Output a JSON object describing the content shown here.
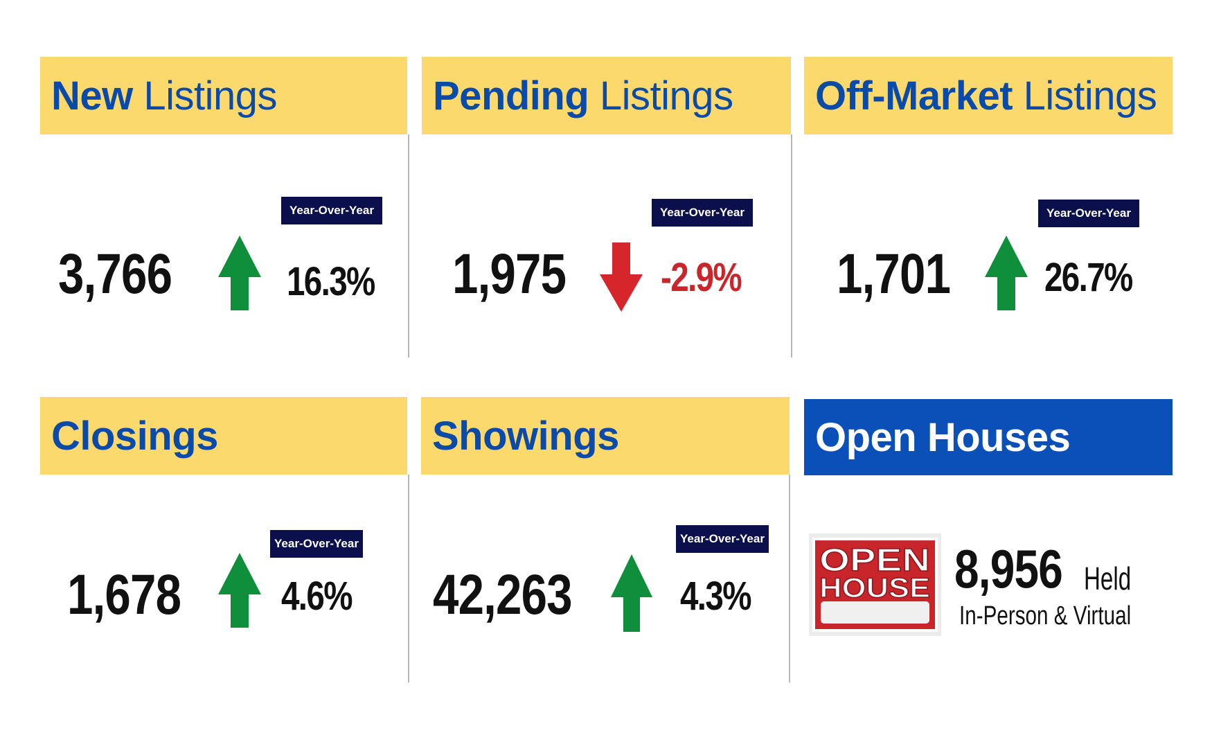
{
  "tiles": [
    {
      "title_bold": "New",
      "title_regular": "Listings",
      "value": "3,766",
      "yoy_label": "Year-Over-Year",
      "change": "16.3%",
      "direction": "up"
    },
    {
      "title_bold": "Pending",
      "title_regular": "Listings",
      "value": "1,975",
      "yoy_label": "Year-Over-Year",
      "change": "-2.9%",
      "direction": "down"
    },
    {
      "title_bold": "Off-Market",
      "title_regular": "Listings",
      "value": "1,701",
      "yoy_label": "Year-Over-Year",
      "change": "26.7%",
      "direction": "up"
    },
    {
      "title_bold": "Closings",
      "title_regular": "",
      "value": "1,678",
      "yoy_label": "Year-Over-Year",
      "change": "4.6%",
      "direction": "up"
    },
    {
      "title_bold": "Showings",
      "title_regular": "",
      "value": "42,263",
      "yoy_label": "Year-Over-Year",
      "change": "4.3%",
      "direction": "up"
    }
  ],
  "open_houses": {
    "title": "Open Houses",
    "sign_line1": "OPEN",
    "sign_line2": "HOUSE",
    "value": "8,956",
    "value_suffix": "Held",
    "subtitle": "In-Person & Virtual"
  },
  "colors": {
    "header_yellow": "#fcd96d",
    "header_blue": "#0b4fb8",
    "title_blue": "#0a4aa8",
    "badge_navy": "#0b0f4c",
    "arrow_up_green": "#0f8f3b",
    "arrow_down_red": "#d6262c",
    "negative_text": "#c8262b"
  },
  "icons": {
    "up": "arrow-up-icon",
    "down": "arrow-down-icon",
    "sign": "open-house-sign-icon"
  }
}
